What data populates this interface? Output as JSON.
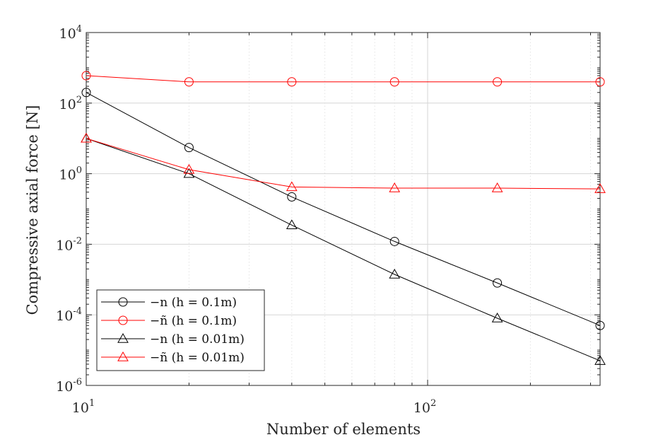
{
  "chart_data": {
    "type": "line",
    "xscale": "log",
    "yscale": "log",
    "xlabel": "Number of elements",
    "ylabel": "Compressive axial force [N]",
    "xlim": [
      10,
      320
    ],
    "ylim": [
      1e-06,
      10000
    ],
    "x_ticks": [
      {
        "value": 10,
        "base": "10",
        "exp": "1"
      },
      {
        "value": 100,
        "base": "10",
        "exp": "2"
      }
    ],
    "y_ticks": [
      {
        "value": 1e-06,
        "base": "10",
        "exp": "-6"
      },
      {
        "value": 0.0001,
        "base": "10",
        "exp": "-4"
      },
      {
        "value": 0.01,
        "base": "10",
        "exp": "-2"
      },
      {
        "value": 1,
        "base": "10",
        "exp": "0"
      },
      {
        "value": 100,
        "base": "10",
        "exp": "2"
      },
      {
        "value": 10000,
        "base": "10",
        "exp": "4"
      }
    ],
    "grid": true,
    "legend_position": "bottom-left",
    "x": [
      10,
      20,
      40,
      80,
      160,
      320
    ],
    "series": [
      {
        "name": "−n (h = 0.1m)",
        "color": "#000000",
        "marker": "circle",
        "values": [
          200,
          5.5,
          0.22,
          0.012,
          0.0008,
          5e-05
        ]
      },
      {
        "name": "−ñ (h = 0.1m)",
        "color": "#ff0000",
        "marker": "circle",
        "values": [
          600,
          400,
          400,
          400,
          400,
          400
        ]
      },
      {
        "name": "−n (h = 0.01m)",
        "color": "#000000",
        "marker": "triangle",
        "values": [
          10,
          1.0,
          0.035,
          0.0014,
          8e-05,
          5e-06
        ]
      },
      {
        "name": "−ñ (h = 0.01m)",
        "color": "#ff0000",
        "marker": "triangle",
        "values": [
          10,
          1.3,
          0.42,
          0.39,
          0.39,
          0.37
        ]
      }
    ]
  }
}
